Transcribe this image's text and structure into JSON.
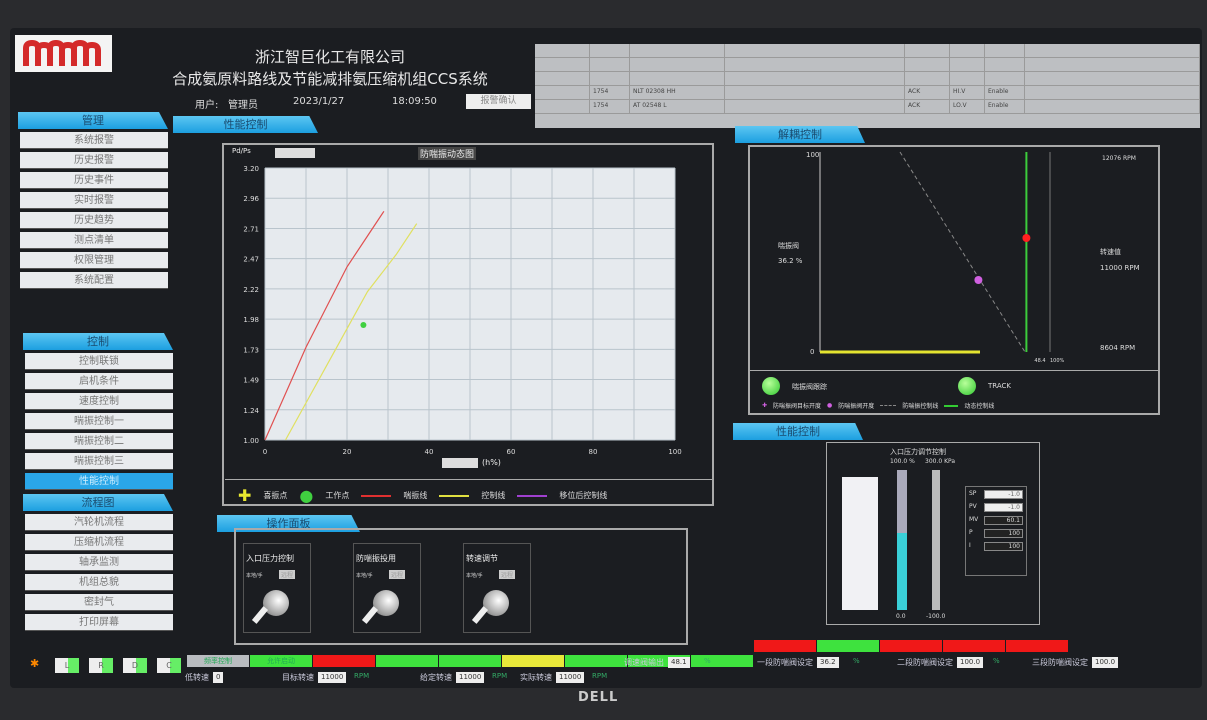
{
  "header": {
    "company": "浙江智巨化工有限公司",
    "system": "合成氨原料路线及节能减排氨压缩机组CCS系统",
    "user_label": "用户:",
    "user": "管理员",
    "date": "2023/1/27",
    "time": "18:09:50",
    "ack_button": "报警确认"
  },
  "alarms": [
    {
      "date": "",
      "time": "",
      "tag": "",
      "desc": "",
      "c1": "",
      "c2": "",
      "c3": "",
      "color": "#5fbf5f"
    },
    {
      "date": "",
      "time": "",
      "tag": "",
      "desc": "",
      "c1": "",
      "c2": "",
      "c3": "",
      "color": "#5fbf5f"
    },
    {
      "date": "",
      "time": "",
      "tag": "",
      "desc": "",
      "c1": "",
      "c2": "",
      "c3": "",
      "color": "#ff3030"
    },
    {
      "date": "",
      "time": "1754",
      "tag": "NLT 02308 HH",
      "desc": "",
      "c1": "ACK",
      "c2": "HI.V",
      "c3": "Enable",
      "color": "#444"
    },
    {
      "date": "",
      "time": "1754",
      "tag": "AT 02548 L",
      "desc": "",
      "c1": "ACK",
      "c2": "LO.V",
      "c3": "Enable",
      "color": "#444"
    }
  ],
  "sidebar": {
    "groups": [
      {
        "title": "管理",
        "items": [
          "系统报警",
          "历史报警",
          "历史事件",
          "实时报警",
          "历史趋势",
          "测点清单",
          "权限管理",
          "系统配置"
        ]
      },
      {
        "title": "控制",
        "items": [
          "控制联锁",
          "启机条件",
          "速度控制",
          "喘振控制一",
          "喘振控制二",
          "喘振控制三",
          "性能控制"
        ],
        "active": "性能控制"
      },
      {
        "title": "流程图",
        "items": [
          "汽轮机流程",
          "压缩机流程",
          "轴承监测",
          "机组总貌",
          "密封气",
          "打印屏幕"
        ]
      }
    ]
  },
  "panel": {
    "tab": "性能控制",
    "section2": "操作面板",
    "section3": "解耦控制",
    "section4": "性能控制"
  },
  "chart_data": [
    {
      "type": "line",
      "title": "防喘振动态图",
      "ylabel": "Pd/Ps",
      "xlabel": "(h%)",
      "ylim": [
        1.0,
        3.2
      ],
      "xlim": [
        0,
        100
      ],
      "yticks": [
        "1.00",
        "1.24",
        "1.49",
        "1.73",
        "1.98",
        "2.22",
        "2.47",
        "2.71",
        "2.96",
        "3.20"
      ],
      "xticks": [
        "0",
        "20",
        "40",
        "60",
        "80",
        "100"
      ],
      "grid": true,
      "series": [
        {
          "name": "喘振线",
          "color": "#e05050",
          "x": [
            0,
            10,
            20,
            25,
            29
          ],
          "y": [
            1.0,
            1.75,
            2.4,
            2.65,
            2.85
          ]
        },
        {
          "name": "控制线",
          "color": "#e0e060",
          "x": [
            5,
            15,
            25,
            32,
            37
          ],
          "y": [
            1.0,
            1.6,
            2.2,
            2.5,
            2.75
          ]
        }
      ],
      "points": [
        {
          "name": "工作点",
          "color": "#40d040",
          "x": 24,
          "y": 1.93
        }
      ],
      "legend": [
        "喜振点",
        "工作点",
        "喘振线",
        "控制线",
        "移位后控制线"
      ]
    },
    {
      "type": "scatter",
      "ylim": [
        0,
        100
      ],
      "left_label": "喘振阀",
      "left_value": "36.2 %",
      "right_top": "12076 RPM",
      "right_label": "转速值",
      "right_value": "11000 RPM",
      "right_bottom": "8604 RPM",
      "x_mid": "48.4",
      "x_end": "100%",
      "green_line_x": 86,
      "red_point_y": 57,
      "purple_point": {
        "x": 66,
        "y": 36
      },
      "status": [
        "喘振阀跟踪",
        "TRACK"
      ],
      "legend": [
        "防喘振阀目标开度",
        "防喘振阀开度",
        "防喘振控制线",
        "动态控制线"
      ]
    }
  ],
  "faceplate": {
    "title": "入口压力调节控制",
    "top_left": "100.0 %",
    "top_right": "300.0 KPa",
    "bottom_left": "0.0",
    "bottom_right": "-100.0",
    "bar_level": 0.55,
    "rows": [
      {
        "k": "SP",
        "v": "-1.0"
      },
      {
        "k": "PV",
        "v": "-1.0"
      },
      {
        "k": "MV",
        "v": "60.1"
      },
      {
        "k": "P",
        "v": "100"
      },
      {
        "k": "I",
        "v": "100"
      }
    ]
  },
  "switches": [
    {
      "title": "入口压力控制",
      "mode": "本地/手",
      "state": "远程"
    },
    {
      "title": "防喘振投用",
      "mode": "本地/手",
      "state": "远程"
    },
    {
      "title": "转速调节",
      "mode": "本地/手",
      "state": "远程"
    }
  ],
  "statusbar": {
    "buttons": [
      "L",
      "R",
      "D",
      "C"
    ],
    "lights": [
      {
        "t": "频率控制",
        "c": "#b9bcc0"
      },
      {
        "t": "允许启动",
        "c": "#3ee23e"
      },
      {
        "t": "",
        "c": "#f01818"
      },
      {
        "t": "",
        "c": "#3ee23e"
      },
      {
        "t": "",
        "c": "#3ee23e"
      },
      {
        "t": "",
        "c": "#e8e83a"
      },
      {
        "t": "",
        "c": "#3ee23e"
      },
      {
        "t": "",
        "c": "#3ee23e"
      },
      {
        "t": "",
        "c": "#3ee23e"
      },
      {
        "t": "",
        "c": "#f01818"
      },
      {
        "t": "",
        "c": "#3ee23e"
      },
      {
        "t": "",
        "c": "#f01818"
      },
      {
        "t": "",
        "c": "#f01818"
      },
      {
        "t": "",
        "c": "#f01818"
      }
    ],
    "fields": [
      {
        "label": "低转速",
        "value": "0",
        "unit": ""
      },
      {
        "label": "目标转速",
        "value": "11000",
        "unit": "RPM"
      },
      {
        "label": "给定转速",
        "value": "11000",
        "unit": "RPM"
      },
      {
        "label": "实际转速",
        "value": "11000",
        "unit": "RPM"
      },
      {
        "label": "调速阀输出",
        "value": "48.1",
        "unit": "%"
      },
      {
        "label": "一段防喘阀设定",
        "value": "36.2",
        "unit": "%"
      },
      {
        "label": "二段防喘阀设定",
        "value": "100.0",
        "unit": "%"
      },
      {
        "label": "三段防喘阀设定",
        "value": "100.0",
        "unit": ""
      }
    ]
  },
  "monitor_brand": "DELL"
}
